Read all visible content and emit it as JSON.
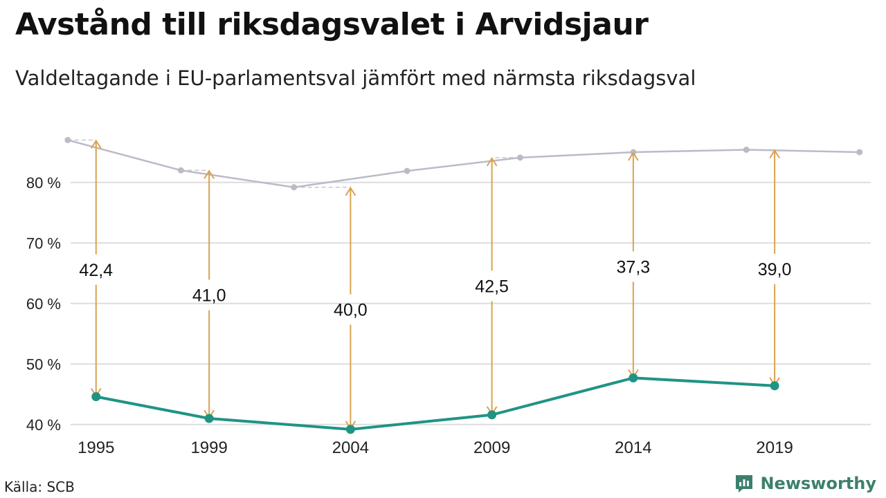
{
  "header": {
    "title": "Avstånd till riksdagsvalet i Arvidsjaur",
    "subtitle": "Valdeltagande i EU-parlamentsval jämfört med närmsta riksdagsval"
  },
  "footer": {
    "source": "Källa: SCB",
    "brand": "Newsworthy",
    "brand_color": "#3d7f6d"
  },
  "chart_data": {
    "type": "line",
    "ylim": [
      37,
      93
    ],
    "yticks": [
      40,
      50,
      60,
      70,
      80
    ],
    "ytick_format": "{v} %",
    "grid": true,
    "x_ticks": [
      "1995",
      "1999",
      "2004",
      "2009",
      "2014",
      "2019"
    ],
    "xlim": [
      1994.1,
      2022.4
    ],
    "series": [
      {
        "role": "riksdagsval",
        "color": "#bdbac8",
        "points": [
          {
            "x": 1994,
            "y": 87.0
          },
          {
            "x": 1998,
            "y": 82.0
          },
          {
            "x": 2002,
            "y": 79.2
          },
          {
            "x": 2006,
            "y": 81.9
          },
          {
            "x": 2010,
            "y": 84.1
          },
          {
            "x": 2014,
            "y": 85.0
          },
          {
            "x": 2018,
            "y": 85.4
          },
          {
            "x": 2022,
            "y": 85.0
          }
        ]
      },
      {
        "role": "eu-val",
        "color": "#1f9484",
        "points": [
          {
            "x": 1995,
            "y": 44.6
          },
          {
            "x": 1999,
            "y": 41.0
          },
          {
            "x": 2004,
            "y": 39.2
          },
          {
            "x": 2009,
            "y": 41.6
          },
          {
            "x": 2014,
            "y": 47.7
          },
          {
            "x": 2019,
            "y": 46.4
          }
        ]
      }
    ],
    "gaps": [
      {
        "x": 1995,
        "from": 44.6,
        "to": 87.0,
        "ref_x": 1994,
        "label": "42,4",
        "label_y": 65.6
      },
      {
        "x": 1999,
        "from": 41.0,
        "to": 82.0,
        "ref_x": 1998,
        "label": "41,0",
        "label_y": 61.4
      },
      {
        "x": 2004,
        "from": 39.2,
        "to": 79.2,
        "ref_x": 2002,
        "label": "40,0",
        "label_y": 59.0
      },
      {
        "x": 2009,
        "from": 41.6,
        "to": 84.1,
        "ref_x": 2010,
        "label": "42,5",
        "label_y": 62.9
      },
      {
        "x": 2014,
        "from": 47.7,
        "to": 85.0,
        "ref_x": 2014,
        "label": "37,3",
        "label_y": 66.1
      },
      {
        "x": 2019,
        "from": 46.4,
        "to": 85.4,
        "ref_x": 2018,
        "label": "39,0",
        "label_y": 65.7
      }
    ],
    "arrow_color": "#d9a24e",
    "grid_color": "#dddddd"
  }
}
